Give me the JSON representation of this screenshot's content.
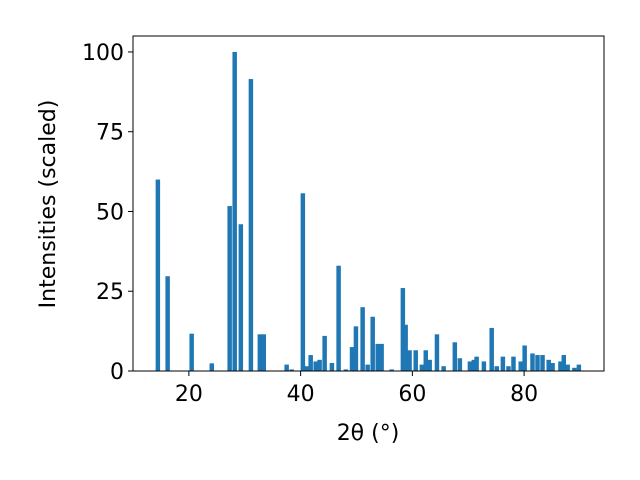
{
  "chart_data": {
    "type": "bar",
    "xlabel": "2θ (°)",
    "ylabel": "Intensities (scaled)",
    "color": "#1f77b4",
    "x": [
      14.45,
      16.2,
      20.5,
      24.1,
      27.3,
      28.2,
      29.3,
      31.1,
      32.7,
      33.4,
      37.5,
      38.4,
      40.4,
      41.1,
      41.8,
      42.7,
      43.4,
      44.3,
      45.6,
      46.8,
      48.1,
      49.2,
      49.9,
      51.1,
      52.0,
      52.9,
      53.8,
      54.5,
      56.3,
      58.3,
      58.8,
      59.5,
      60.6,
      61.7,
      62.4,
      63.1,
      64.4,
      65.6,
      67.6,
      68.5,
      70.3,
      71.0,
      71.5,
      72.8,
      74.2,
      75.1,
      76.2,
      77.2,
      78.1,
      79.4,
      80.1,
      81.5,
      82.4,
      83.3,
      84.4,
      85.1,
      86.5,
      87.1,
      87.8,
      89.0,
      89.8
    ],
    "values": [
      60,
      29.7,
      11.7,
      2.4,
      51.7,
      100,
      46,
      91.5,
      11.5,
      11.5,
      2,
      0.5,
      55.7,
      1.5,
      5,
      3,
      3.5,
      11,
      2.5,
      33,
      0.5,
      7.5,
      14,
      20,
      2,
      17,
      8.5,
      8.5,
      0.5,
      26,
      14.5,
      6.5,
      6.5,
      2,
      6.5,
      3.5,
      11.5,
      1.5,
      9,
      4,
      3,
      3.5,
      4.5,
      3,
      13.5,
      1.5,
      4.5,
      1.5,
      4.5,
      3,
      8,
      5.5,
      5,
      5,
      3.5,
      2.5,
      3,
      5,
      2,
      1,
      2
    ],
    "xlim": [
      10,
      94.3
    ],
    "ylim": [
      0,
      105
    ],
    "xticks": [
      20,
      40,
      60,
      80
    ],
    "yticks": [
      0,
      25,
      50,
      75,
      100
    ]
  }
}
